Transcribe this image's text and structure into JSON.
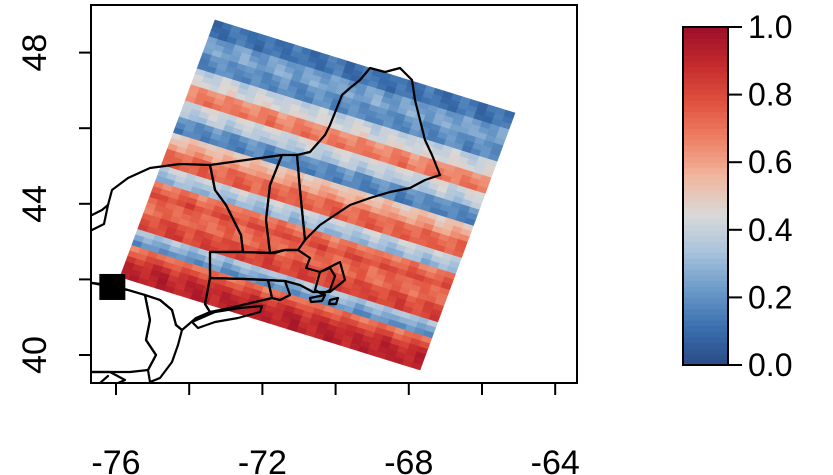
{
  "map": {
    "x_ticks": [
      {
        "value": -76,
        "label": "-76"
      },
      {
        "value": -72,
        "label": "-72"
      },
      {
        "value": -68,
        "label": "-68"
      },
      {
        "value": -64,
        "label": "-64"
      }
    ],
    "y_ticks": [
      {
        "value": 40,
        "label": "40"
      },
      {
        "value": 44,
        "label": "44"
      },
      {
        "value": 48,
        "label": "48"
      }
    ],
    "marker": {
      "shape": "filled-square",
      "lon": -76.1,
      "lat": 41.8,
      "color": "#000000"
    }
  },
  "colorbar": {
    "ticks": [
      {
        "value": 0.0,
        "label": "0.0"
      },
      {
        "value": 0.2,
        "label": "0.2"
      },
      {
        "value": 0.4,
        "label": "0.4"
      },
      {
        "value": 0.6,
        "label": "0.6"
      },
      {
        "value": 0.8,
        "label": "0.8"
      },
      {
        "value": 1.0,
        "label": "1.0"
      }
    ],
    "palette": [
      "#2a4a86",
      "#3a6fae",
      "#6a99c8",
      "#a8c2dc",
      "#d9d9d9",
      "#f0b8a0",
      "#ee8266",
      "#e0523e",
      "#c42a2d",
      "#9c0f29"
    ]
  },
  "chart_data": {
    "type": "heatmap",
    "colorbar_range": [
      0.0,
      1.0
    ],
    "lon_range": [
      -77.5,
      -63.5
    ],
    "lat_range": [
      39.3,
      49.2
    ],
    "bands_south_to_north": [
      0.92,
      0.86,
      0.2,
      0.82,
      0.72,
      0.8,
      0.3,
      0.75,
      0.62,
      0.16,
      0.35,
      0.7,
      0.45,
      0.18,
      0.26,
      0.12
    ],
    "states_shown": "northeastern United States (New York, Pennsylvania, New Jersey, New England)"
  }
}
